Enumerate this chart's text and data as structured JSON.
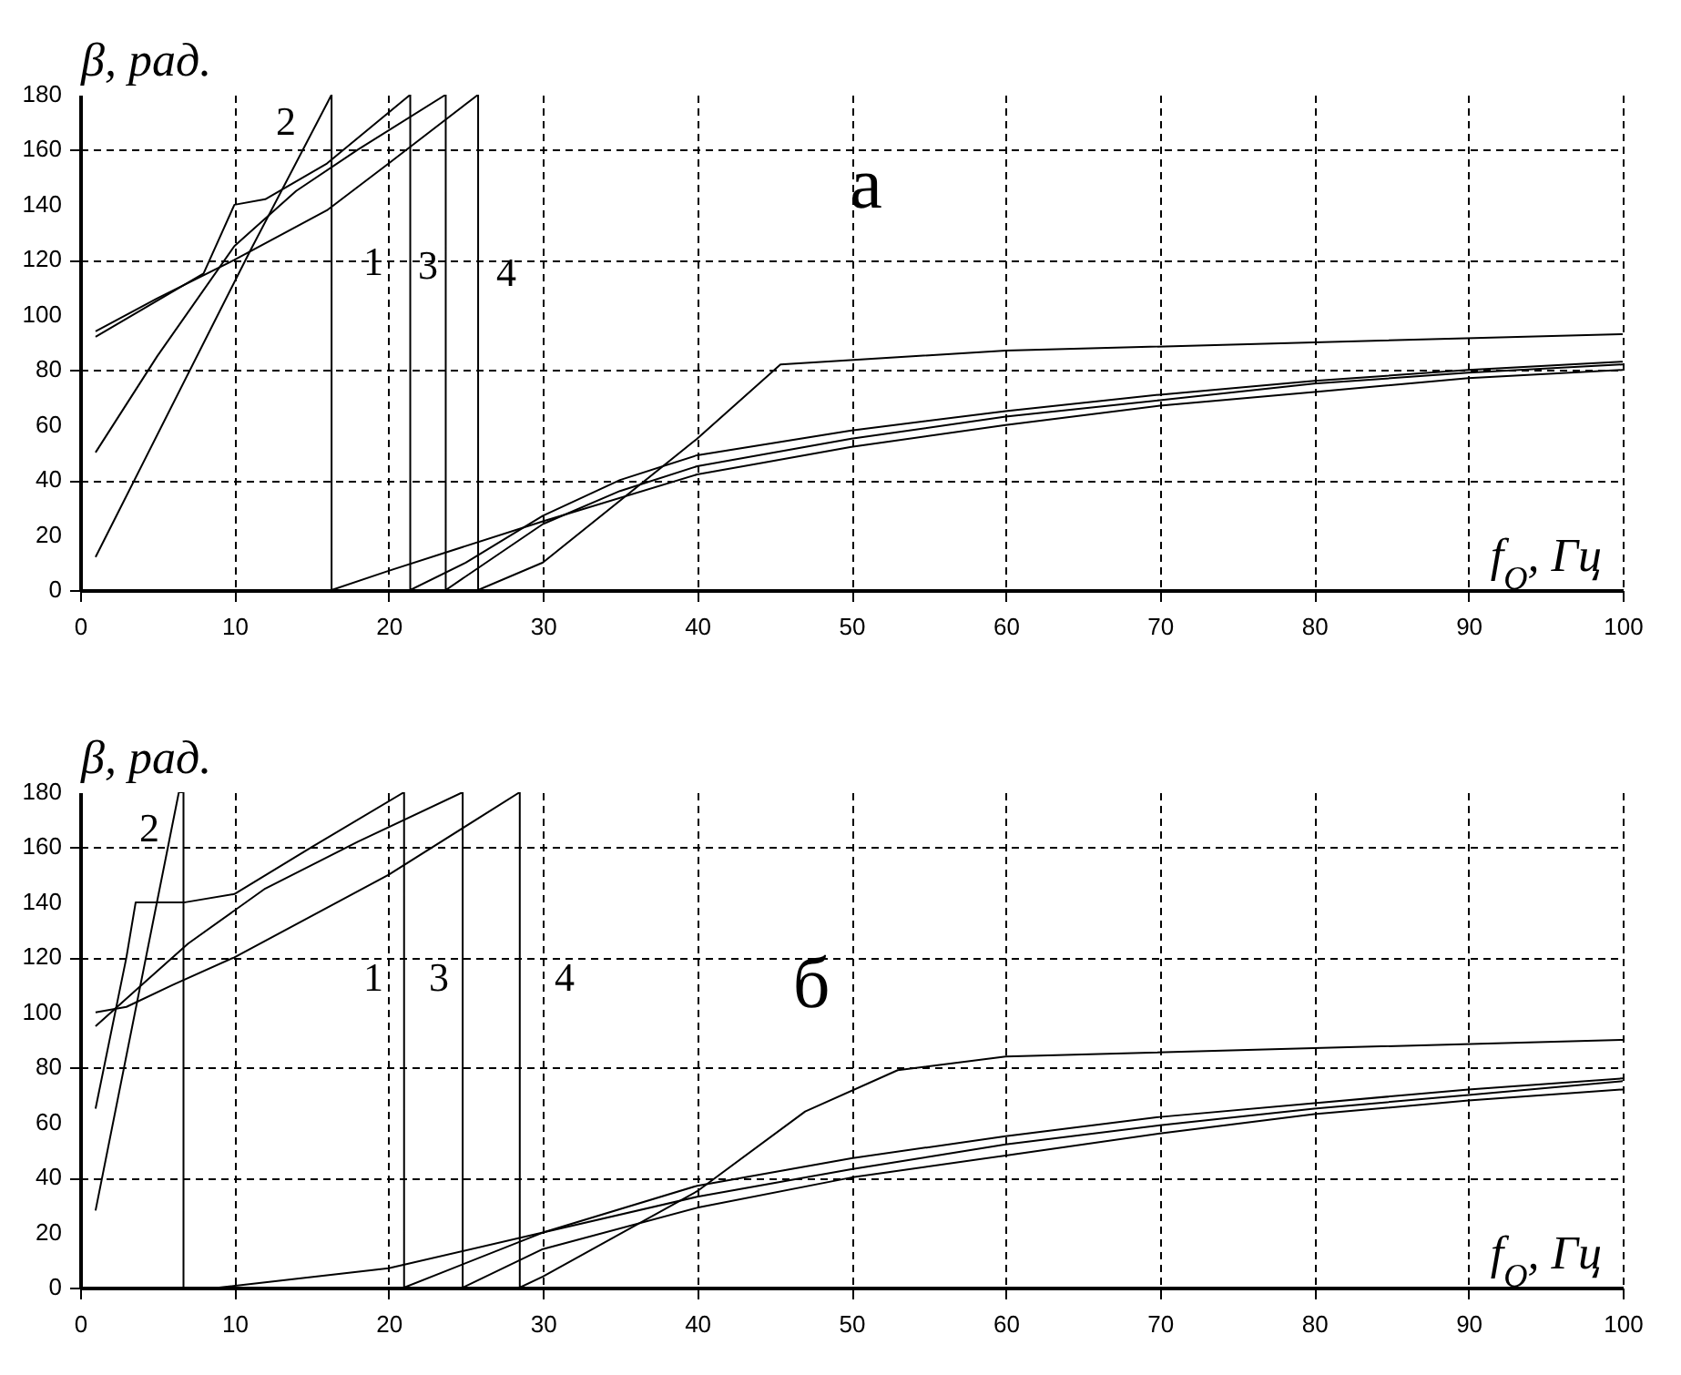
{
  "chart_data": [
    {
      "type": "line",
      "title": "а",
      "xlabel": "f$_{O}$, Гц",
      "ylabel": "β, рад.",
      "xlim": [
        0,
        100
      ],
      "ylim": [
        0,
        180
      ],
      "xticks": [
        0,
        10,
        20,
        30,
        40,
        50,
        60,
        70,
        80,
        90,
        100
      ],
      "yticks": [
        0,
        20,
        40,
        60,
        80,
        100,
        120,
        140,
        160,
        180
      ],
      "grid": true,
      "line_style": "solid",
      "annotations": [
        "2",
        "1",
        "3",
        "4"
      ],
      "series": [
        {
          "color": "#000000",
          "x": [
            1,
            8,
            10,
            12,
            16,
            21.4,
            21.4,
            25,
            30,
            35,
            40,
            50,
            60,
            70,
            80,
            90,
            100
          ],
          "values": [
            92,
            115,
            140,
            142,
            155,
            180,
            0,
            10,
            27,
            40,
            49,
            58,
            65,
            71,
            76,
            80,
            83
          ]
        },
        {
          "color": "#000000",
          "x": [
            1,
            11,
            16.3,
            16.3,
            20,
            30,
            40,
            50,
            60,
            70,
            80,
            90,
            100
          ],
          "values": [
            12,
            123,
            180,
            0,
            7,
            25,
            42,
            52,
            60,
            67,
            72,
            77,
            80
          ]
        },
        {
          "color": "#000000",
          "x": [
            1,
            5,
            10,
            14,
            18,
            23.7,
            23.7,
            30,
            35,
            40,
            50,
            60,
            70,
            80,
            90,
            100
          ],
          "values": [
            50,
            85,
            125,
            145,
            160,
            180,
            0,
            24,
            36,
            45,
            55,
            63,
            69,
            75,
            79,
            82
          ]
        },
        {
          "color": "#000000",
          "x": [
            1,
            5,
            10,
            16,
            20,
            25.8,
            25.8,
            30,
            40,
            45.4,
            60,
            80,
            100
          ],
          "values": [
            94,
            106,
            120,
            138,
            155,
            180,
            0,
            10,
            55,
            82,
            87,
            90,
            93
          ]
        }
      ]
    },
    {
      "type": "line",
      "title": "б",
      "xlabel": "f$_{O}$, Гц",
      "ylabel": "β, рад.",
      "xlim": [
        0,
        100
      ],
      "ylim": [
        0,
        180
      ],
      "xticks": [
        0,
        10,
        20,
        30,
        40,
        50,
        60,
        70,
        80,
        90,
        100
      ],
      "yticks": [
        0,
        20,
        40,
        60,
        80,
        100,
        120,
        140,
        160,
        180
      ],
      "grid": true,
      "line_style": "solid",
      "annotations": [
        "2",
        "1",
        "3",
        "4"
      ],
      "series": [
        {
          "color": "#000000",
          "x": [
            1,
            3,
            3.6,
            6.8,
            10,
            15,
            21,
            21,
            30,
            40,
            50,
            60,
            70,
            80,
            90,
            100
          ],
          "values": [
            65,
            120,
            140,
            140,
            143,
            160,
            180,
            0,
            20,
            37,
            47,
            55,
            62,
            67,
            72,
            76
          ]
        },
        {
          "color": "#000000",
          "x": [
            1,
            6.4,
            6.7,
            6.7,
            9,
            20,
            30,
            40,
            50,
            60,
            70,
            80,
            90,
            100
          ],
          "values": [
            28,
            180,
            180,
            0,
            0,
            7,
            20,
            33,
            43,
            52,
            59,
            65,
            70,
            75
          ]
        },
        {
          "color": "#000000",
          "x": [
            1,
            4,
            7,
            12,
            18,
            24.8,
            24.8,
            30,
            40,
            50,
            60,
            70,
            80,
            90,
            100
          ],
          "values": [
            95,
            110,
            125,
            145,
            162,
            180,
            0,
            14,
            29,
            40,
            48,
            56,
            63,
            68,
            72
          ]
        },
        {
          "color": "#000000",
          "x": [
            1,
            3,
            6,
            10,
            20,
            28.5,
            28.5,
            30,
            40,
            47,
            53,
            60,
            80,
            100
          ],
          "values": [
            100,
            102,
            110,
            120,
            150,
            180,
            0,
            4,
            35,
            64,
            79,
            84,
            87,
            90
          ]
        }
      ]
    }
  ]
}
